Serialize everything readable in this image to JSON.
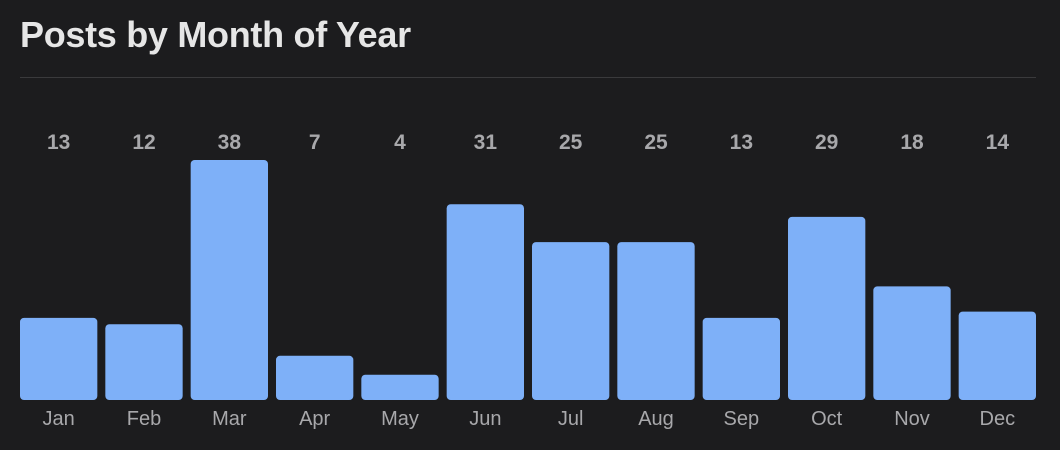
{
  "header": {
    "title": "Posts by Month of Year"
  },
  "colors": {
    "bar": "#7eb0f8",
    "background": "#1c1c1e",
    "label": "#a8a8ab",
    "divider": "#3a3a3c"
  },
  "chart_data": {
    "type": "bar",
    "title": "Posts by Month of Year",
    "xlabel": "",
    "ylabel": "",
    "categories": [
      "Jan",
      "Feb",
      "Mar",
      "Apr",
      "May",
      "Jun",
      "Jul",
      "Aug",
      "Sep",
      "Oct",
      "Nov",
      "Dec"
    ],
    "values": [
      13,
      12,
      38,
      7,
      4,
      31,
      25,
      25,
      13,
      29,
      18,
      14
    ],
    "ylim": [
      0,
      38
    ],
    "grid": false,
    "legend": "none",
    "data_labels": "top"
  }
}
